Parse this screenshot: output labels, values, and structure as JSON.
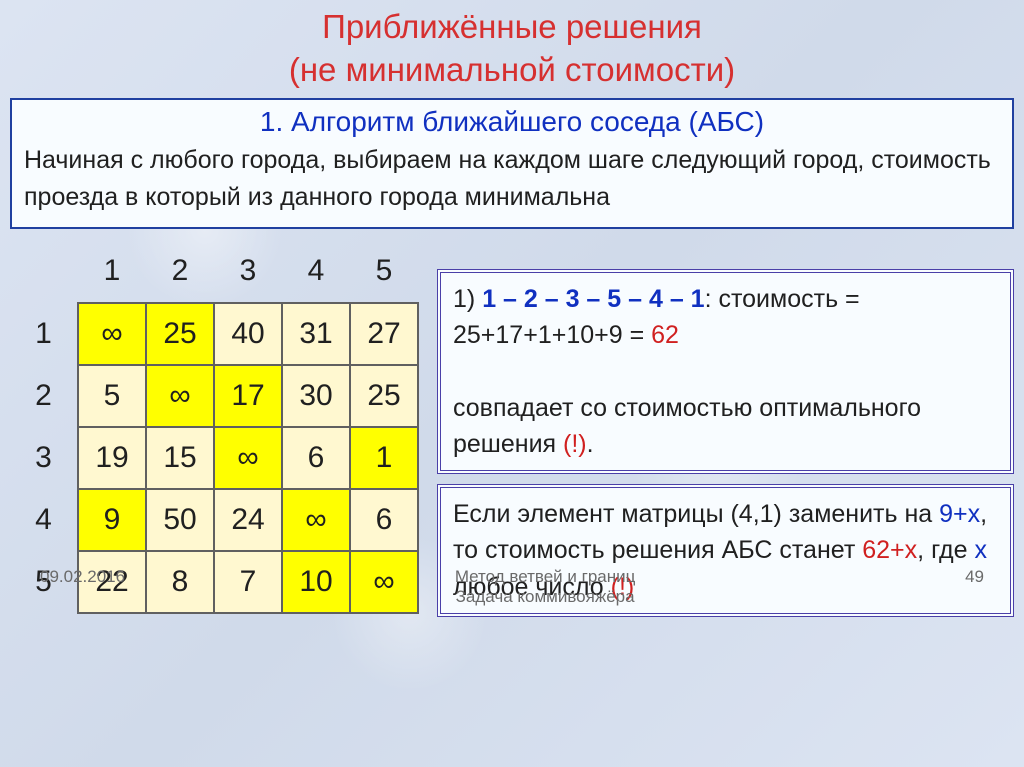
{
  "title": {
    "line1": "Приближённые решения",
    "line2": "(не минимальной стоимости)"
  },
  "algo": {
    "heading": "1. Алгоритм ближайшего соседа (АБС)",
    "description": "Начиная с любого города, выбираем на каждом шаге следующий город, стоимость проезда в который из данного города минимальна"
  },
  "matrix": {
    "col_headers": [
      "1",
      "2",
      "3",
      "4",
      "5"
    ],
    "row_headers": [
      "1",
      "2",
      "3",
      "4",
      "5"
    ],
    "cells": [
      [
        {
          "v": "∞",
          "hl": true
        },
        {
          "v": "25",
          "hl": true
        },
        {
          "v": "40",
          "hl": false
        },
        {
          "v": "31",
          "hl": false
        },
        {
          "v": "27",
          "hl": false
        }
      ],
      [
        {
          "v": "5",
          "hl": false
        },
        {
          "v": "∞",
          "hl": true
        },
        {
          "v": "17",
          "hl": true
        },
        {
          "v": "30",
          "hl": false
        },
        {
          "v": "25",
          "hl": false
        }
      ],
      [
        {
          "v": "19",
          "hl": false
        },
        {
          "v": "15",
          "hl": false
        },
        {
          "v": "∞",
          "hl": true
        },
        {
          "v": "6",
          "hl": false
        },
        {
          "v": "1",
          "hl": true
        }
      ],
      [
        {
          "v": "9",
          "hl": true
        },
        {
          "v": "50",
          "hl": false
        },
        {
          "v": "24",
          "hl": false
        },
        {
          "v": "∞",
          "hl": true
        },
        {
          "v": "6",
          "hl": false
        }
      ],
      [
        {
          "v": "22",
          "hl": false
        },
        {
          "v": "8",
          "hl": false
        },
        {
          "v": "7",
          "hl": false
        },
        {
          "v": "10",
          "hl": true
        },
        {
          "v": "∞",
          "hl": true
        }
      ]
    ],
    "cell_bg_normal": "#fff8d0",
    "cell_bg_highlight": "#ffff00",
    "border_color": "#606060",
    "font_size": 30
  },
  "box1": {
    "prefix": "1) ",
    "route": "1 – 2 – 3 – 5 – 4 – 1",
    "cost_label": ": стоимость = 25+17+1+10+9 = ",
    "cost_value": "62",
    "line2_a": "совпадает со стоимостью оптимального решения ",
    "line2_b": "(!)",
    "line2_c": "."
  },
  "box2": {
    "t1": "Если элемент матрицы (4,1) заменить на ",
    "v1": "9+x",
    "t2": ", то стоимость решения АБС станет ",
    "v2": "62+x",
    "t3": ", где ",
    "v3": "x",
    "t4": " любое число ",
    "v4": "(!)"
  },
  "footer": {
    "date": "09.02.2016",
    "center1": "Метод ветвей и границ",
    "center2": "Задача коммивояжёра",
    "page": "49"
  },
  "colors": {
    "title_red": "#d63030",
    "text_blue": "#1030c0",
    "text_red": "#d02020",
    "box_border": "#4a3fa8",
    "algo_border": "#2040a0",
    "background": "#d8e0f0"
  }
}
